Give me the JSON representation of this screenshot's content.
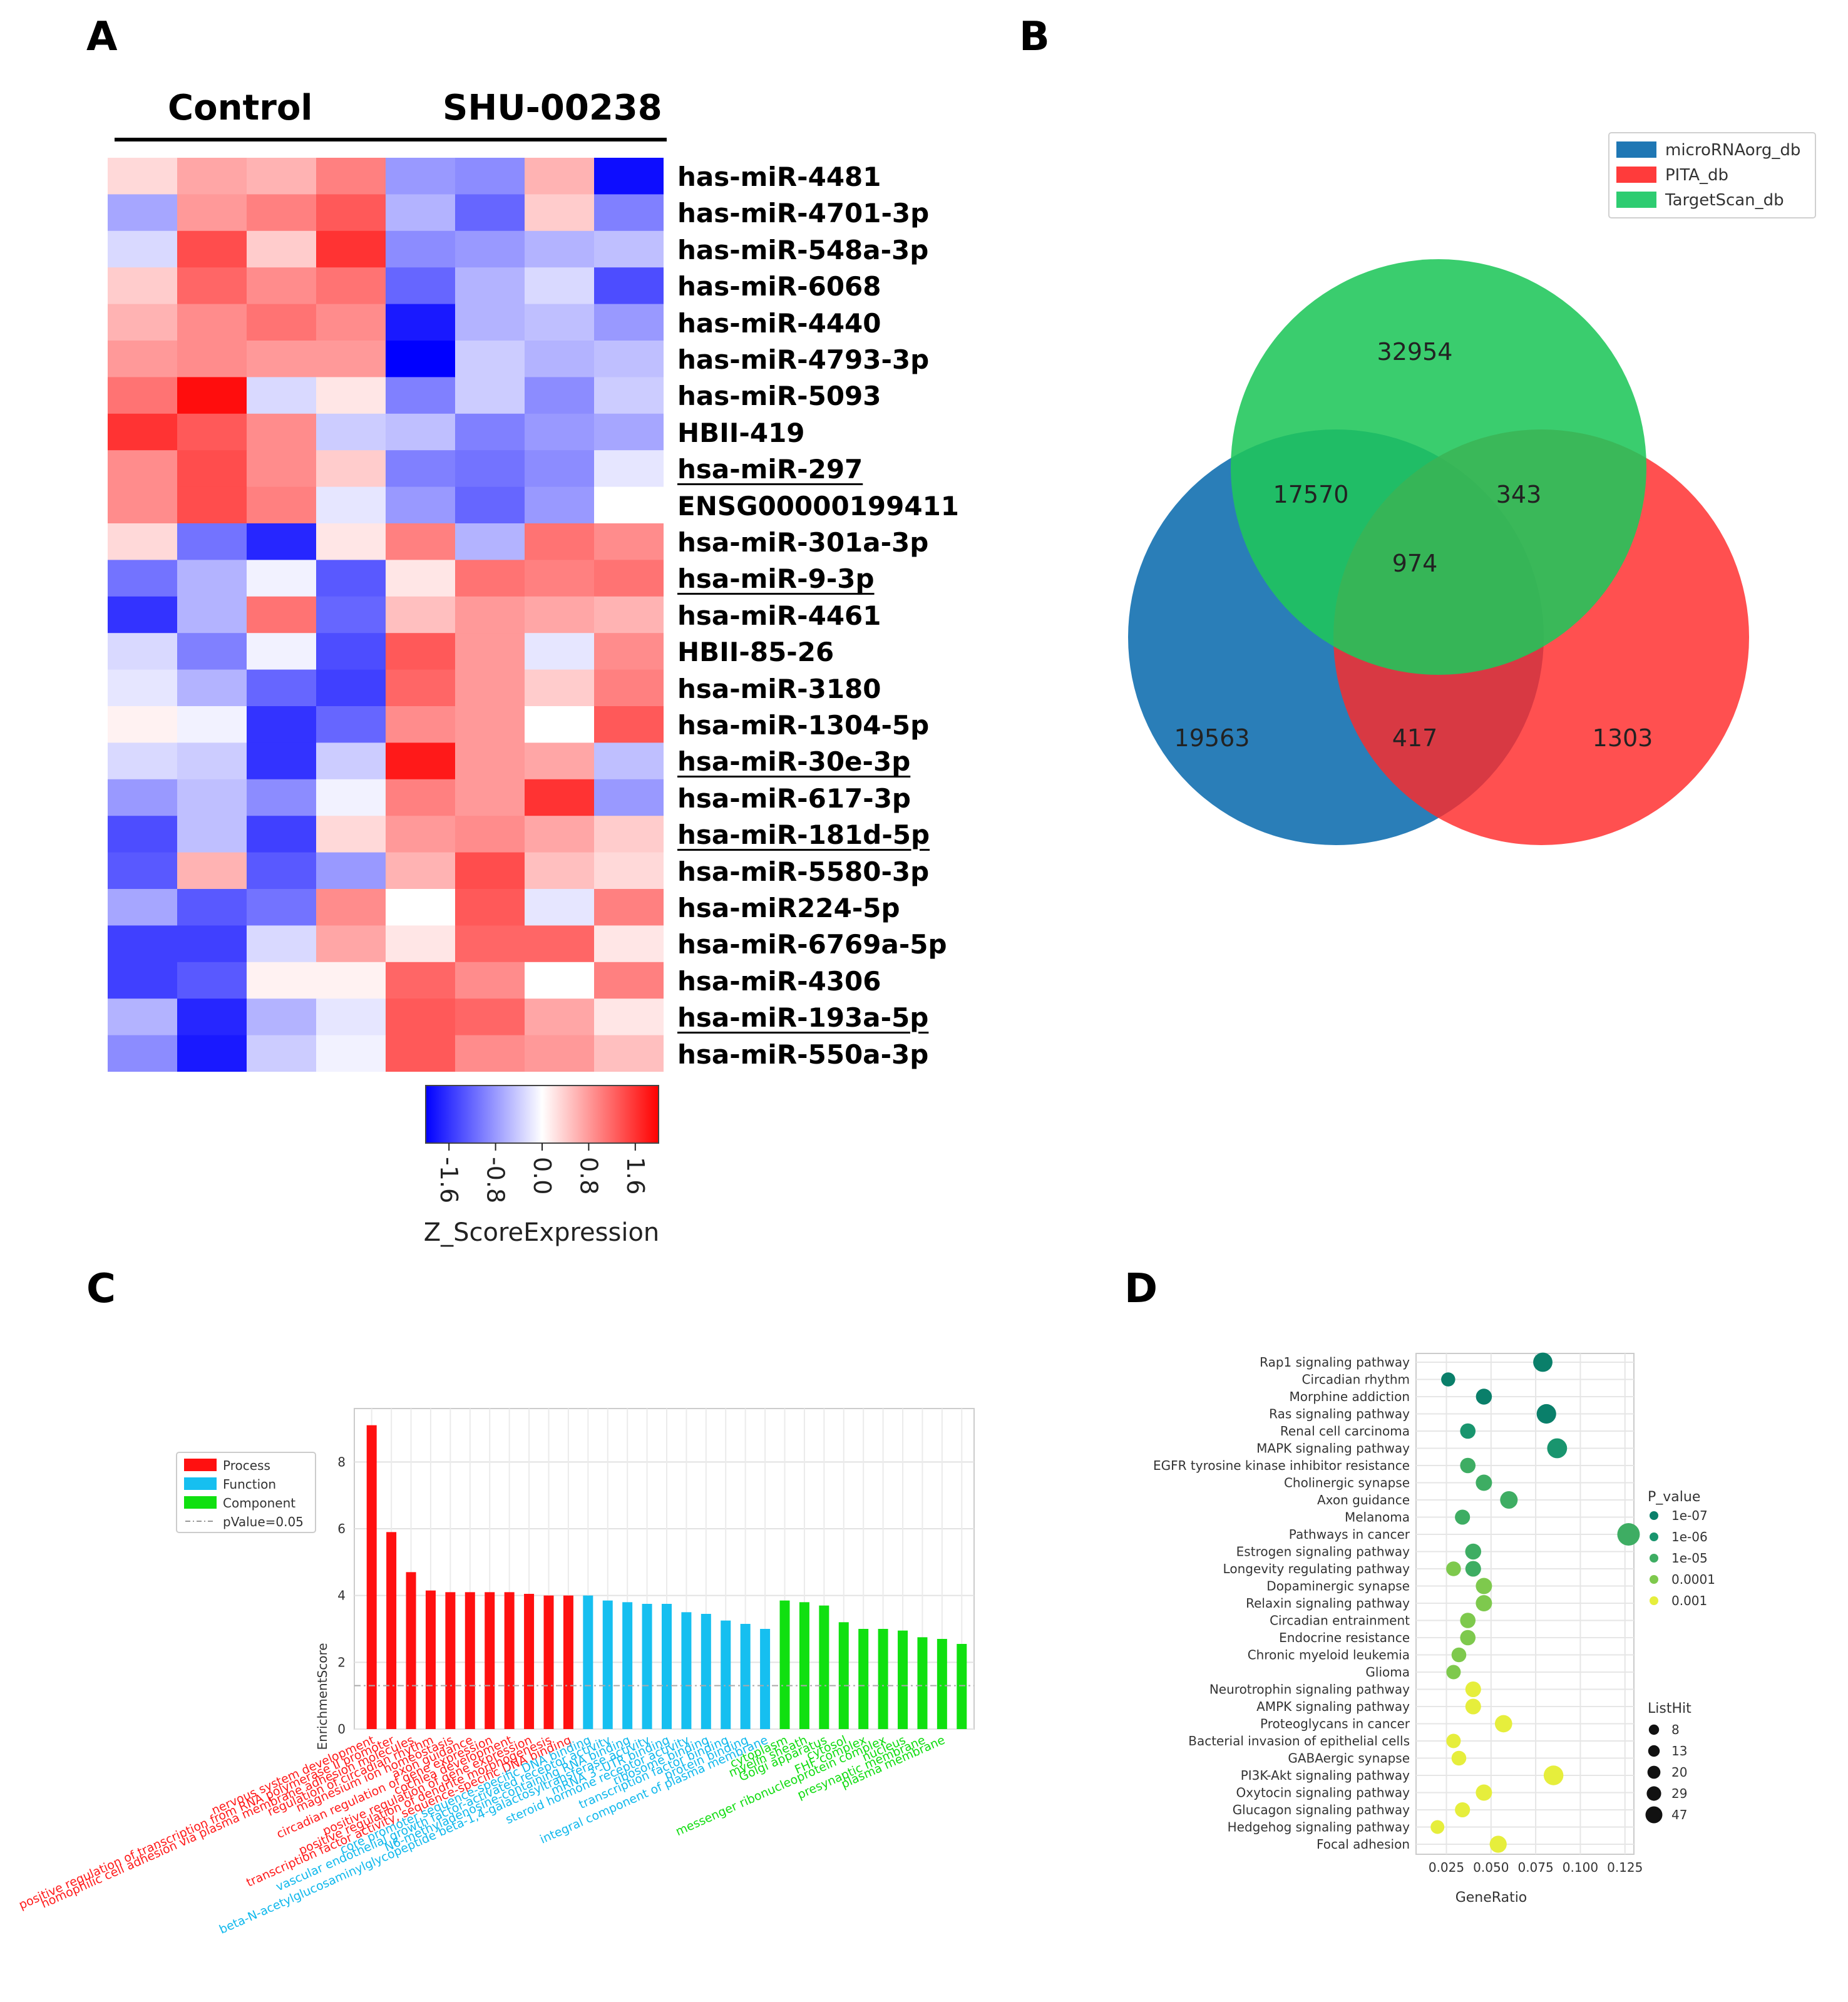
{
  "panels": {
    "a": "A",
    "b": "B",
    "c": "C",
    "d": "D"
  },
  "heatmap": {
    "group_labels": [
      "Control",
      "SHU-00238"
    ],
    "rows": [
      {
        "label": "has-miR-4481",
        "underline": false,
        "values": [
          0.3,
          0.7,
          0.6,
          1.0,
          -0.8,
          -0.9,
          0.6,
          -1.9
        ]
      },
      {
        "label": "has-miR-4701-3p",
        "underline": false,
        "values": [
          -0.7,
          0.8,
          1.0,
          1.3,
          -0.6,
          -1.2,
          0.4,
          -1.0
        ]
      },
      {
        "label": "has-miR-548a-3p",
        "underline": false,
        "values": [
          -0.3,
          1.4,
          0.4,
          1.6,
          -0.9,
          -0.8,
          -0.6,
          -0.5
        ]
      },
      {
        "label": "has-miR-6068",
        "underline": false,
        "values": [
          0.4,
          1.2,
          0.9,
          1.1,
          -1.2,
          -0.6,
          -0.3,
          -1.4
        ]
      },
      {
        "label": "has-miR-4440",
        "underline": false,
        "values": [
          0.6,
          0.9,
          1.1,
          0.9,
          -1.8,
          -0.6,
          -0.5,
          -0.8
        ]
      },
      {
        "label": "has-miR-4793-3p",
        "underline": false,
        "values": [
          0.8,
          0.9,
          0.8,
          0.8,
          -2.0,
          -0.4,
          -0.6,
          -0.5
        ]
      },
      {
        "label": "has-miR-5093",
        "underline": false,
        "values": [
          1.1,
          1.9,
          -0.3,
          0.2,
          -1.0,
          -0.4,
          -0.9,
          -0.4
        ]
      },
      {
        "label": "HBII-419",
        "underline": false,
        "values": [
          1.6,
          1.3,
          0.9,
          -0.4,
          -0.5,
          -1.0,
          -0.8,
          -0.7
        ]
      },
      {
        "label": "hsa-miR-297",
        "underline": true,
        "values": [
          0.9,
          1.4,
          0.9,
          0.4,
          -1.0,
          -1.1,
          -0.9,
          -0.2
        ]
      },
      {
        "label": "ENSG00000199411",
        "underline": false,
        "values": [
          0.9,
          1.4,
          1.0,
          -0.2,
          -0.8,
          -1.2,
          -0.8,
          0.0
        ]
      },
      {
        "label": "hsa-miR-301a-3p",
        "underline": false,
        "values": [
          0.3,
          -1.1,
          -1.7,
          0.2,
          1.0,
          -0.6,
          1.1,
          0.9
        ]
      },
      {
        "label": "hsa-miR-9-3p",
        "underline": true,
        "values": [
          -1.1,
          -0.6,
          -0.1,
          -1.3,
          0.2,
          1.1,
          1.0,
          1.1
        ]
      },
      {
        "label": "hsa-miR-4461",
        "underline": false,
        "values": [
          -1.6,
          -0.6,
          1.1,
          -1.2,
          0.5,
          0.8,
          0.7,
          0.6
        ]
      },
      {
        "label": "HBII-85-26",
        "underline": false,
        "values": [
          -0.3,
          -1.0,
          -0.1,
          -1.4,
          1.3,
          0.8,
          -0.2,
          0.9
        ]
      },
      {
        "label": "hsa-miR-3180",
        "underline": false,
        "values": [
          -0.2,
          -0.6,
          -1.2,
          -1.5,
          1.2,
          0.8,
          0.4,
          1.0
        ]
      },
      {
        "label": "hsa-miR-1304-5p",
        "underline": false,
        "values": [
          0.1,
          -0.1,
          -1.6,
          -1.2,
          0.9,
          0.8,
          0.0,
          1.3
        ]
      },
      {
        "label": "hsa-miR-30e-3p",
        "underline": true,
        "values": [
          -0.3,
          -0.4,
          -1.6,
          -0.4,
          1.8,
          0.8,
          0.7,
          -0.5
        ]
      },
      {
        "label": "hsa-miR-617-3p",
        "underline": false,
        "values": [
          -0.8,
          -0.5,
          -0.9,
          -0.1,
          1.0,
          0.8,
          1.6,
          -0.8
        ]
      },
      {
        "label": "hsa-miR-181d-5p",
        "underline": true,
        "values": [
          -1.4,
          -0.5,
          -1.5,
          0.3,
          0.8,
          0.9,
          0.7,
          0.4
        ]
      },
      {
        "label": "hsa-miR-5580-3p",
        "underline": false,
        "values": [
          -1.3,
          0.6,
          -1.3,
          -0.8,
          0.6,
          1.4,
          0.5,
          0.3
        ]
      },
      {
        "label": "hsa-miR224-5p",
        "underline": false,
        "values": [
          -0.7,
          -1.3,
          -1.1,
          0.9,
          0.0,
          1.3,
          -0.2,
          1.0
        ]
      },
      {
        "label": "hsa-miR-6769a-5p",
        "underline": false,
        "values": [
          -1.5,
          -1.5,
          -0.3,
          0.7,
          0.2,
          1.2,
          1.2,
          0.2
        ]
      },
      {
        "label": "hsa-miR-4306",
        "underline": false,
        "values": [
          -1.5,
          -1.3,
          0.1,
          0.1,
          1.2,
          0.9,
          0.0,
          1.0
        ]
      },
      {
        "label": "hsa-miR-193a-5p",
        "underline": true,
        "values": [
          -0.6,
          -1.7,
          -0.6,
          -0.2,
          1.3,
          1.2,
          0.7,
          0.2
        ]
      },
      {
        "label": "hsa-miR-550a-3p",
        "underline": false,
        "values": [
          -0.9,
          -1.8,
          -0.4,
          -0.1,
          1.3,
          0.9,
          0.8,
          0.5
        ]
      }
    ],
    "colorbar": {
      "ticks": [
        "-1.6",
        "-0.8",
        "0.0",
        "0.8",
        "1.6"
      ],
      "title": "Z_ScoreExpression",
      "range": [
        -2.0,
        2.0
      ]
    }
  },
  "venn": {
    "legend": [
      {
        "label": "microRNAorg_db",
        "color": "#1f77b4"
      },
      {
        "label": "PITA_db",
        "color": "#ff3b3b"
      },
      {
        "label": "TargetScan_db",
        "color": "#2ecc71"
      }
    ],
    "counts": {
      "target_only": "32954",
      "micro_target": "17570",
      "pita_target": "343",
      "all": "974",
      "micro_only": "19563",
      "micro_pita": "417",
      "pita_only": "1303"
    }
  },
  "chart_data": [
    {
      "type": "bar",
      "panel": "C",
      "title": "",
      "xlabel": "",
      "ylabel": "EnrichmentScore",
      "ylim": [
        0,
        9.6
      ],
      "yticks": [
        "0",
        "2",
        "4",
        "6",
        "8"
      ],
      "threshold": {
        "label": "pValue=0.05",
        "value": 1.3
      },
      "legend": [
        {
          "label": "Process",
          "color": "#ff1010"
        },
        {
          "label": "Function",
          "color": "#16bff0"
        },
        {
          "label": "Component",
          "color": "#10e010"
        },
        {
          "label": "pValue=0.05",
          "color": "#999999"
        }
      ],
      "bars": [
        {
          "label": "nervous system development",
          "value": 9.1,
          "group": "Process"
        },
        {
          "label": "positive regulation of transcription from RNA polymerase II promoter",
          "value": 5.9,
          "group": "Process"
        },
        {
          "label": "homophilic cell adhesion via plasma membrane adhesion molecules",
          "value": 4.7,
          "group": "Process"
        },
        {
          "label": "regulation of circadian rhythm",
          "value": 4.15,
          "group": "Process"
        },
        {
          "label": "magnesium ion homeostasis",
          "value": 4.1,
          "group": "Process"
        },
        {
          "label": "axon guidance",
          "value": 4.1,
          "group": "Process"
        },
        {
          "label": "circadian regulation of gene expression",
          "value": 4.1,
          "group": "Process"
        },
        {
          "label": "cochlea development",
          "value": 4.1,
          "group": "Process"
        },
        {
          "label": "positive regulation of gene expression",
          "value": 4.05,
          "group": "Process"
        },
        {
          "label": "positive regulation of dendrite morphogenesis",
          "value": 4.0,
          "group": "Process"
        },
        {
          "label": "transcription factor activity, sequence-specific DNA binding",
          "value": 4.0,
          "group": "Process"
        },
        {
          "label": "core promoter sequence-specific DNA binding",
          "value": 4.0,
          "group": "Function"
        },
        {
          "label": "vascular endothelial growth factor-activated receptor activity",
          "value": 3.85,
          "group": "Function"
        },
        {
          "label": "N6-methyladenosine-containing RNA binding",
          "value": 3.8,
          "group": "Function"
        },
        {
          "label": "beta-N-acetylglucosaminylglycopeptide beta-1,4-galactosyltransferase activity",
          "value": 3.75,
          "group": "Function"
        },
        {
          "label": "mRNA 3'-UTR binding",
          "value": 3.75,
          "group": "Function"
        },
        {
          "label": "steroid hormone receptor activity",
          "value": 3.5,
          "group": "Function"
        },
        {
          "label": "ribosome binding",
          "value": 3.45,
          "group": "Function"
        },
        {
          "label": "transcription factor binding",
          "value": 3.25,
          "group": "Function"
        },
        {
          "label": "protein binding",
          "value": 3.15,
          "group": "Function"
        },
        {
          "label": "integral component of plasma membrane",
          "value": 3.0,
          "group": "Function"
        },
        {
          "label": "cytoplasm",
          "value": 3.85,
          "group": "Component"
        },
        {
          "label": "myelin sheath",
          "value": 3.8,
          "group": "Component"
        },
        {
          "label": "Golgi apparatus",
          "value": 3.7,
          "group": "Component"
        },
        {
          "label": "cytosol",
          "value": 3.2,
          "group": "Component"
        },
        {
          "label": "FHF complex",
          "value": 3.0,
          "group": "Component"
        },
        {
          "label": "messenger ribonucleoprotein complex",
          "value": 3.0,
          "group": "Component"
        },
        {
          "label": "nucleus",
          "value": 2.95,
          "group": "Component"
        },
        {
          "label": "presynaptic membrane",
          "value": 2.75,
          "group": "Component"
        },
        {
          "label": "plasma membrane",
          "value": 2.7,
          "group": "Component"
        },
        {
          "label": "",
          "value": 2.55,
          "group": "Component"
        }
      ]
    },
    {
      "type": "scatter",
      "panel": "D",
      "title": "",
      "xlabel": "GeneRatio",
      "ylabel": "",
      "xlim": [
        0.008,
        0.13
      ],
      "xticks": [
        0.025,
        0.05,
        0.075,
        0.1,
        0.125
      ],
      "xtick_labels": [
        "0.025",
        "0.050",
        "0.075",
        "0.100",
        "0.125"
      ],
      "legend_pvalue": {
        "title": "P_value",
        "entries": [
          {
            "label": "1e-07",
            "color": "#0a7f6a"
          },
          {
            "label": "1e-06",
            "color": "#19956e"
          },
          {
            "label": "1e-05",
            "color": "#3ead63"
          },
          {
            "label": "0.0001",
            "color": "#7ec94d"
          },
          {
            "label": "0.001",
            "color": "#e6ee3c"
          }
        ]
      },
      "legend_listhit": {
        "title": "ListHit",
        "entries": [
          {
            "label": "8",
            "size": 8
          },
          {
            "label": "13",
            "size": 13
          },
          {
            "label": "20",
            "size": 20
          },
          {
            "label": "29",
            "size": 29
          },
          {
            "label": "47",
            "size": 47
          }
        ]
      },
      "points": [
        {
          "pathway": "Rap1 signaling pathway",
          "x": 0.079,
          "p": 1e-07,
          "hits": 29
        },
        {
          "pathway": "Circadian rhythm",
          "x": 0.026,
          "p": 1e-07,
          "hits": 9
        },
        {
          "pathway": "Morphine addiction",
          "x": 0.046,
          "p": 1e-07,
          "hits": 15
        },
        {
          "pathway": "Ras signaling pathway",
          "x": 0.081,
          "p": 1e-07,
          "hits": 30
        },
        {
          "pathway": "Renal cell carcinoma",
          "x": 0.037,
          "p": 1e-06,
          "hits": 13
        },
        {
          "pathway": "MAPK signaling pathway",
          "x": 0.087,
          "p": 1e-06,
          "hits": 32
        },
        {
          "pathway": "EGFR tyrosine kinase inhibitor resistance",
          "x": 0.037,
          "p": 1e-05,
          "hits": 13
        },
        {
          "pathway": "Cholinergic synapse",
          "x": 0.046,
          "p": 1e-05,
          "hits": 16
        },
        {
          "pathway": "Axon guidance",
          "x": 0.06,
          "p": 1e-05,
          "hits": 21
        },
        {
          "pathway": "Melanoma",
          "x": 0.034,
          "p": 1e-05,
          "hits": 12
        },
        {
          "pathway": "Pathways in cancer",
          "x": 0.127,
          "p": 1e-05,
          "hits": 47
        },
        {
          "pathway": "Estrogen signaling pathway",
          "x": 0.04,
          "p": 1e-05,
          "hits": 15
        },
        {
          "pathway": "Longevity regulating pathway",
          "x": 0.029,
          "p": 0.0001,
          "hits": 11
        },
        {
          "pathway": "Longevity regulating pathway",
          "x": 0.04,
          "p": 1e-05,
          "hits": 14
        },
        {
          "pathway": "Dopaminergic synapse",
          "x": 0.046,
          "p": 0.0001,
          "hits": 16
        },
        {
          "pathway": "Relaxin signaling pathway",
          "x": 0.046,
          "p": 0.0001,
          "hits": 16
        },
        {
          "pathway": "Circadian entrainment",
          "x": 0.037,
          "p": 0.0001,
          "hits": 13
        },
        {
          "pathway": "Endocrine resistance",
          "x": 0.037,
          "p": 0.0001,
          "hits": 13
        },
        {
          "pathway": "Chronic myeloid leukemia",
          "x": 0.032,
          "p": 0.0001,
          "hits": 11
        },
        {
          "pathway": "Glioma",
          "x": 0.029,
          "p": 0.0001,
          "hits": 10
        },
        {
          "pathway": "Neurotrophin signaling pathway",
          "x": 0.04,
          "p": 0.001,
          "hits": 14
        },
        {
          "pathway": "AMPK signaling pathway",
          "x": 0.04,
          "p": 0.001,
          "hits": 14
        },
        {
          "pathway": "Proteoglycans in cancer",
          "x": 0.057,
          "p": 0.001,
          "hits": 20
        },
        {
          "pathway": "Bacterial invasion of epithelial cells",
          "x": 0.029,
          "p": 0.001,
          "hits": 10
        },
        {
          "pathway": "GABAergic synapse",
          "x": 0.032,
          "p": 0.001,
          "hits": 11
        },
        {
          "pathway": "PI3K-Akt signaling pathway",
          "x": 0.085,
          "p": 0.001,
          "hits": 31
        },
        {
          "pathway": "Oxytocin signaling pathway",
          "x": 0.046,
          "p": 0.001,
          "hits": 16
        },
        {
          "pathway": "Glucagon signaling pathway",
          "x": 0.034,
          "p": 0.001,
          "hits": 12
        },
        {
          "pathway": "Hedgehog signaling pathway",
          "x": 0.02,
          "p": 0.001,
          "hits": 8
        },
        {
          "pathway": "Focal adhesion",
          "x": 0.054,
          "p": 0.001,
          "hits": 19
        }
      ]
    }
  ]
}
